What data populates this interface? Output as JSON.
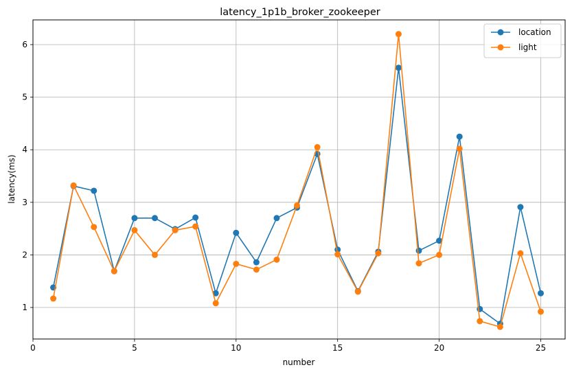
{
  "chart_data": {
    "type": "line",
    "title": "latency_1p1b_broker_zookeeper",
    "xlabel": "number",
    "ylabel": "latency(ms)",
    "x": [
      1,
      2,
      3,
      4,
      5,
      6,
      7,
      8,
      9,
      10,
      11,
      12,
      13,
      14,
      15,
      16,
      17,
      18,
      19,
      20,
      21,
      22,
      23,
      24,
      25
    ],
    "xlim": [
      0,
      26.2
    ],
    "ylim": [
      0.4,
      6.47
    ],
    "xticks": [
      0,
      5,
      10,
      15,
      20,
      25
    ],
    "yticks": [
      1,
      2,
      3,
      4,
      5,
      6
    ],
    "grid": true,
    "legend_position": "top-right",
    "series": [
      {
        "name": "location",
        "color": "#1f77b4",
        "values": [
          1.38,
          3.31,
          3.22,
          1.69,
          2.7,
          2.7,
          2.49,
          2.71,
          1.27,
          2.42,
          1.86,
          2.7,
          2.9,
          3.92,
          2.1,
          1.31,
          2.06,
          5.56,
          2.08,
          2.27,
          4.25,
          0.97,
          0.69,
          2.91,
          1.27
        ]
      },
      {
        "name": "light",
        "color": "#ff7f0e",
        "values": [
          1.17,
          3.32,
          2.53,
          1.69,
          2.47,
          2.0,
          2.47,
          2.54,
          1.08,
          1.83,
          1.72,
          1.91,
          2.94,
          4.05,
          2.01,
          1.3,
          2.03,
          6.2,
          1.84,
          2.0,
          4.02,
          0.74,
          0.63,
          2.03,
          0.92
        ]
      }
    ]
  }
}
